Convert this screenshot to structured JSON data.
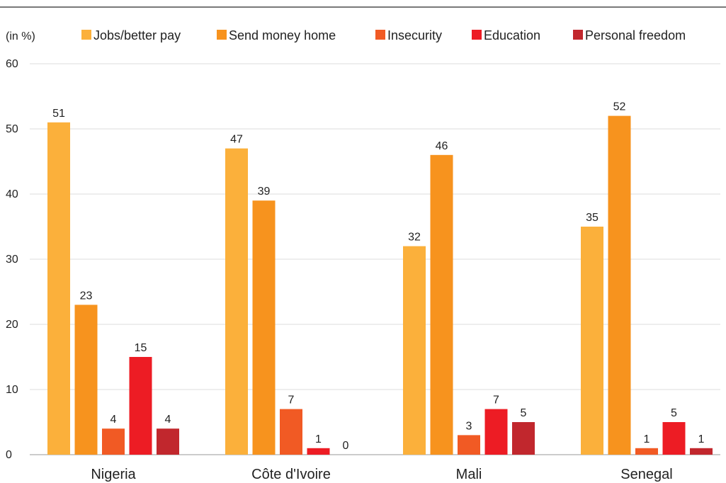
{
  "chart_data": {
    "type": "bar",
    "ylabel": "(in %)",
    "ylim": [
      0,
      60
    ],
    "yticks": [
      0,
      10,
      20,
      30,
      40,
      50,
      60
    ],
    "grid": true,
    "legend_position": "top",
    "categories": [
      "Nigeria",
      "Côte d'Ivoire",
      "Mali",
      "Senegal"
    ],
    "series": [
      {
        "name": "Jobs/better pay",
        "color": "#FBB03B",
        "values": [
          51,
          47,
          32,
          35
        ]
      },
      {
        "name": "Send money home",
        "color": "#F7931E",
        "values": [
          23,
          39,
          46,
          52
        ]
      },
      {
        "name": "Insecurity",
        "color": "#F15A24",
        "values": [
          4,
          7,
          3,
          1
        ]
      },
      {
        "name": "Education",
        "color": "#ED1C24",
        "values": [
          15,
          1,
          7,
          5
        ]
      },
      {
        "name": "Personal freedom",
        "color": "#C1272D",
        "values": [
          4,
          0,
          5,
          1
        ]
      }
    ]
  }
}
